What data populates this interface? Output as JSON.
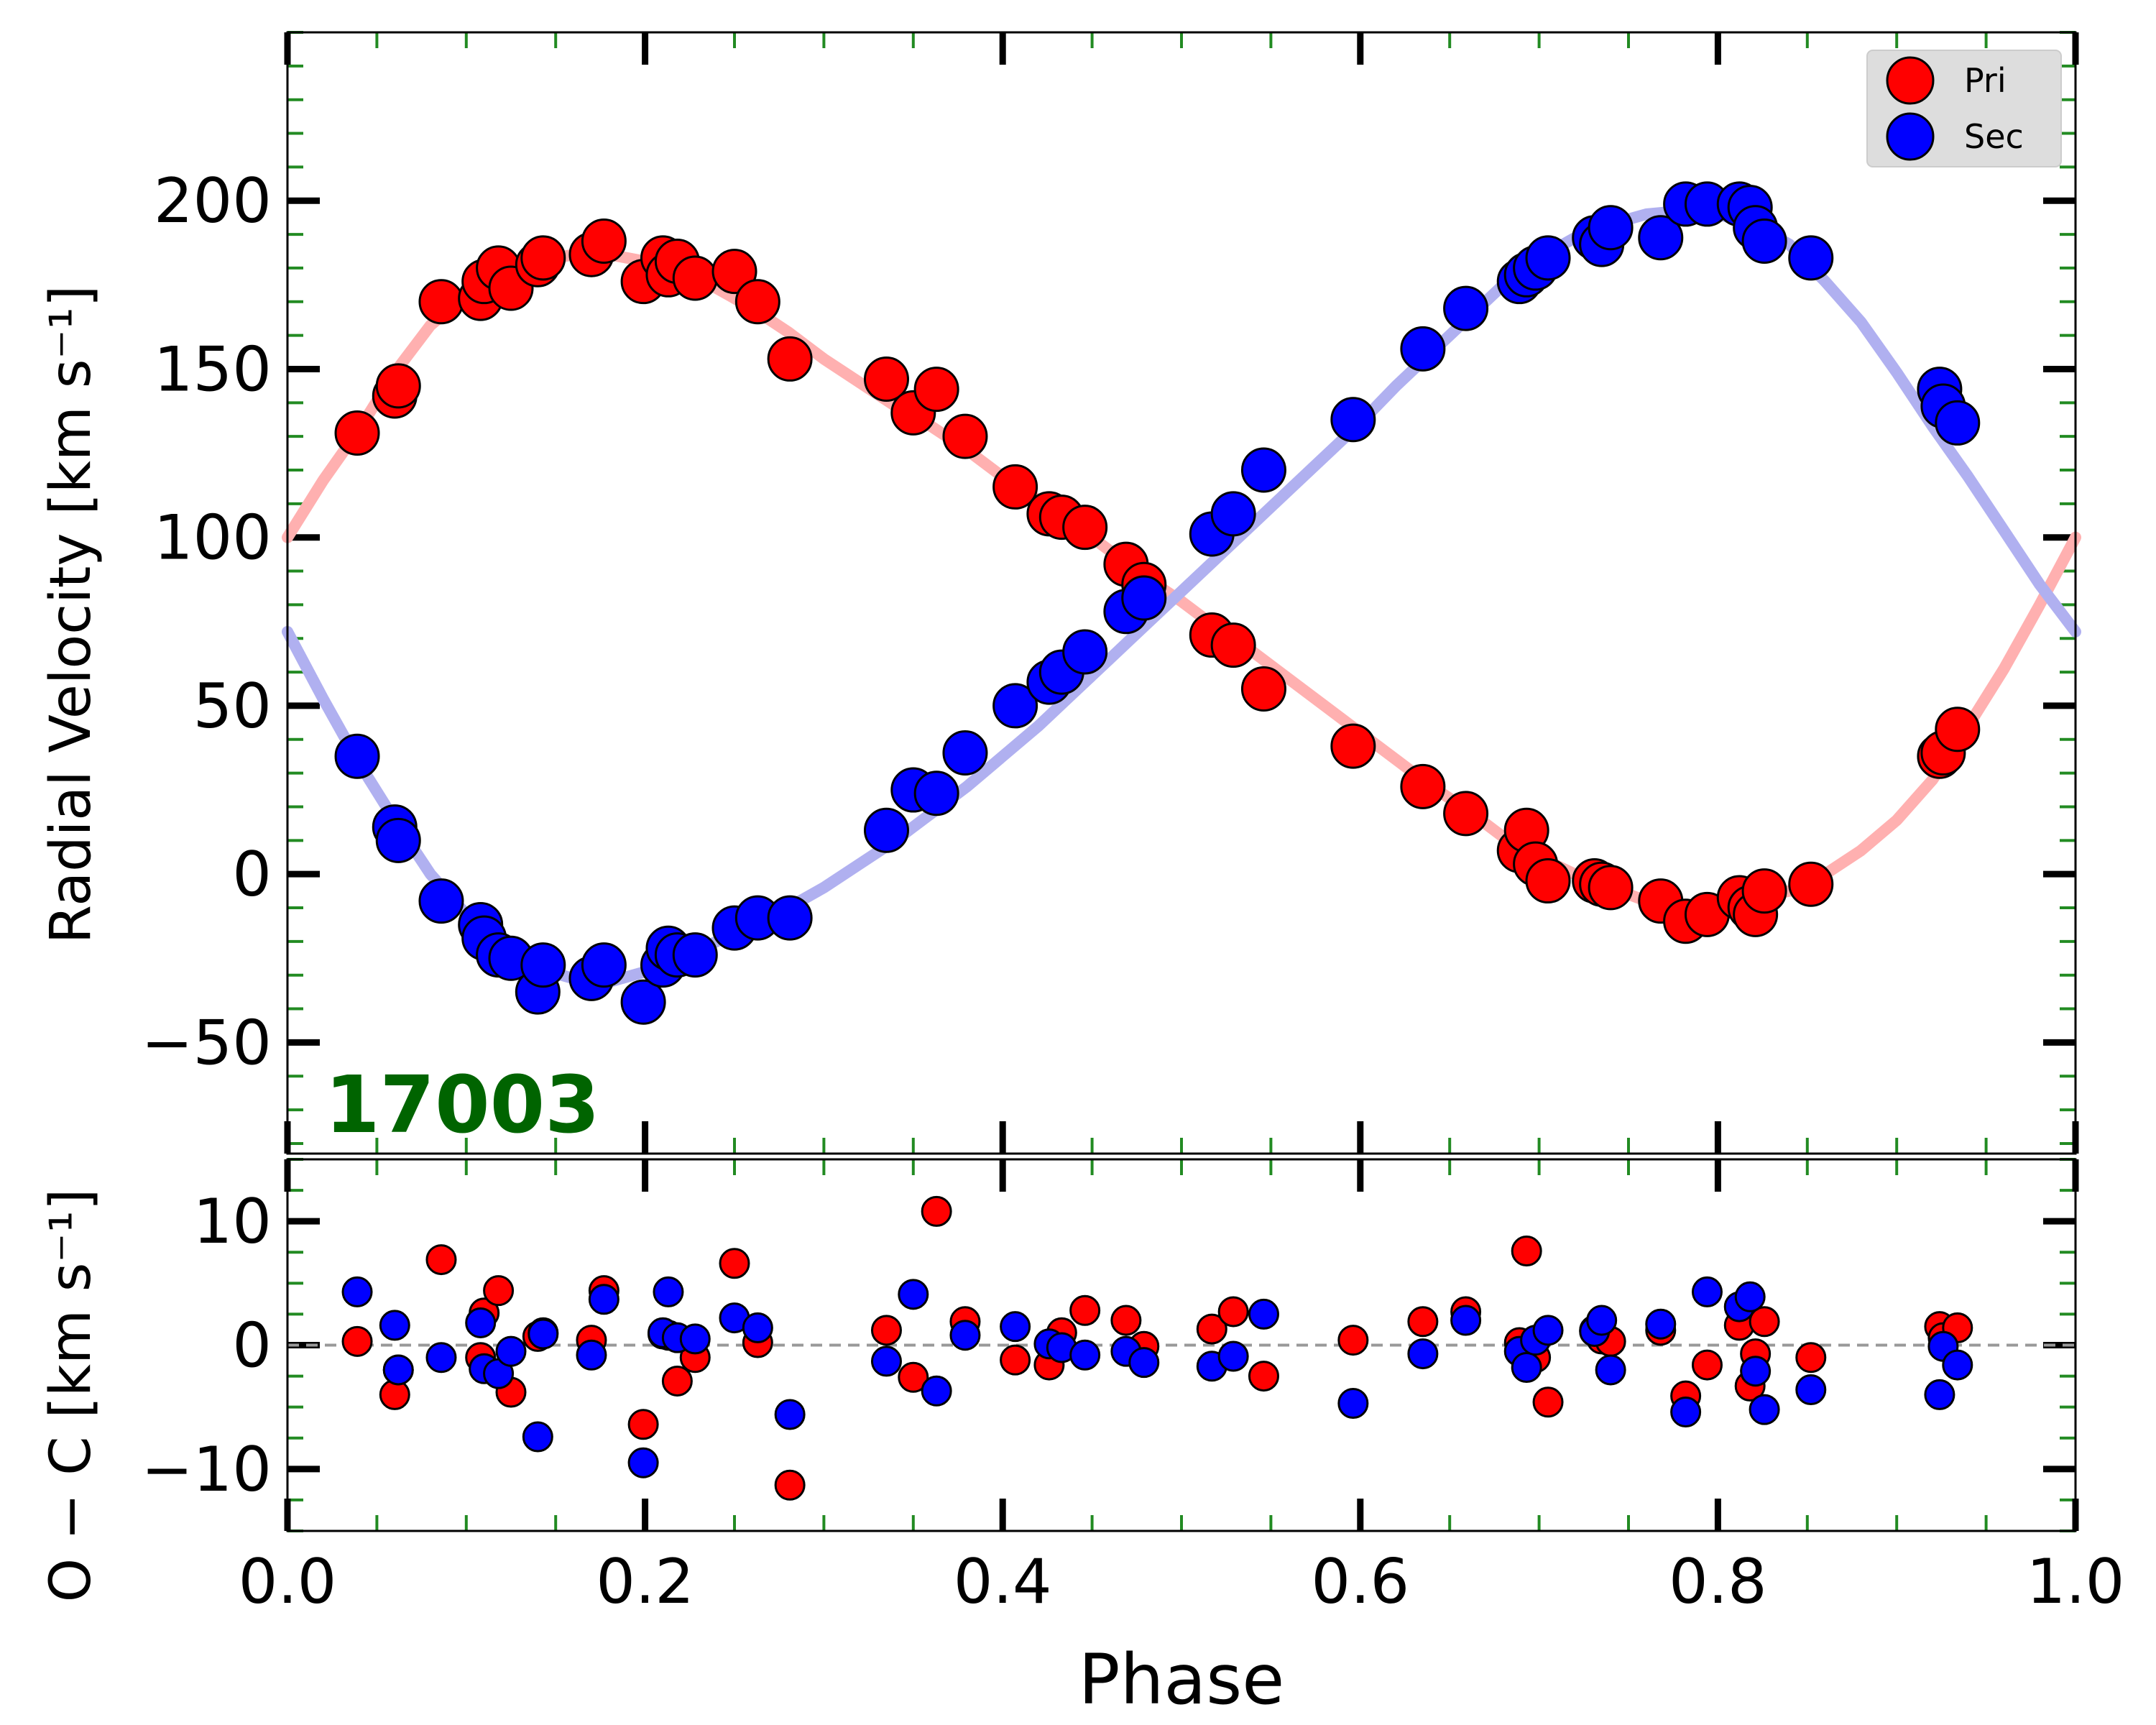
{
  "chart_data": [
    {
      "type": "scatter",
      "panel": "radial-velocity",
      "xlabel": "Phase",
      "ylabel": "Radial Velocity [km s⁻¹]",
      "xlim": [
        0.0,
        1.0
      ],
      "ylim": [
        -83,
        250
      ],
      "x_ticks": [
        0.0,
        0.2,
        0.4,
        0.6,
        0.8,
        1.0
      ],
      "x_tick_labels": [
        "0.0",
        "0.2",
        "0.4",
        "0.6",
        "0.8",
        "1.0"
      ],
      "y_ticks": [
        -50,
        0,
        50,
        100,
        150,
        200
      ],
      "y_tick_labels": [
        "−50",
        "0",
        "50",
        "100",
        "150",
        "200"
      ],
      "annotation": "17003",
      "annotation_color": "#006400",
      "legend_placement": "top-right",
      "series": [
        {
          "name": "Pri",
          "color": "#ff0000",
          "edge_color": "#000000",
          "model_color": "#ffb0b0",
          "x": [
            0.039,
            0.06,
            0.062,
            0.086,
            0.108,
            0.11,
            0.118,
            0.125,
            0.14,
            0.143,
            0.17,
            0.177,
            0.199,
            0.21,
            0.213,
            0.218,
            0.228,
            0.25,
            0.263,
            0.281,
            0.335,
            0.35,
            0.363,
            0.379,
            0.407,
            0.426,
            0.433,
            0.446,
            0.469,
            0.479,
            0.517,
            0.529,
            0.546,
            0.596,
            0.635,
            0.659,
            0.689,
            0.693,
            0.698,
            0.705,
            0.731,
            0.735,
            0.74,
            0.768,
            0.782,
            0.794,
            0.812,
            0.818,
            0.821,
            0.826,
            0.852,
            0.924,
            0.926,
            0.934
          ],
          "y": [
            131,
            142,
            145,
            170,
            171,
            176,
            180,
            174,
            181,
            183,
            184,
            188,
            176,
            183,
            178,
            182,
            177,
            179,
            170,
            153,
            147,
            137,
            144,
            130,
            115,
            107,
            106,
            103,
            92,
            86,
            71,
            68,
            55,
            38,
            26,
            18,
            7,
            13,
            3,
            -2,
            -2,
            -3,
            -4,
            -8,
            -14,
            -12,
            -7,
            -10,
            -12,
            -5,
            -3,
            35,
            36,
            43
          ]
        },
        {
          "name": "Sec",
          "color": "#0000ff",
          "edge_color": "#000000",
          "model_color": "#b0b0f0",
          "x": [
            0.039,
            0.06,
            0.062,
            0.086,
            0.108,
            0.11,
            0.118,
            0.125,
            0.14,
            0.143,
            0.17,
            0.177,
            0.199,
            0.21,
            0.213,
            0.218,
            0.228,
            0.25,
            0.263,
            0.281,
            0.335,
            0.35,
            0.363,
            0.379,
            0.407,
            0.426,
            0.433,
            0.446,
            0.469,
            0.479,
            0.517,
            0.529,
            0.546,
            0.596,
            0.635,
            0.659,
            0.689,
            0.693,
            0.698,
            0.705,
            0.731,
            0.735,
            0.74,
            0.768,
            0.782,
            0.794,
            0.812,
            0.818,
            0.821,
            0.826,
            0.852,
            0.924,
            0.926,
            0.934
          ],
          "y": [
            35,
            14,
            10,
            -8,
            -15,
            -19,
            -24,
            -25,
            -35,
            -27,
            -31,
            -27,
            -38,
            -27,
            -22,
            -24,
            -24,
            -16,
            -13,
            -13,
            13,
            25,
            24,
            36,
            50,
            57,
            60,
            66,
            78,
            82,
            101,
            107,
            120,
            135,
            156,
            168,
            176,
            178,
            180,
            183,
            189,
            187,
            192,
            189,
            199,
            199,
            199,
            198,
            192,
            188,
            183,
            144,
            139,
            134
          ]
        }
      ],
      "model_curves": [
        {
          "name": "Pri",
          "x": [
            0.0,
            0.02,
            0.04,
            0.06,
            0.08,
            0.1,
            0.12,
            0.14,
            0.16,
            0.18,
            0.2,
            0.22,
            0.24,
            0.26,
            0.28,
            0.3,
            0.32,
            0.34,
            0.36,
            0.38,
            0.4,
            0.42,
            0.44,
            0.46,
            0.48,
            0.5,
            0.52,
            0.54,
            0.56,
            0.58,
            0.6,
            0.62,
            0.64,
            0.66,
            0.68,
            0.7,
            0.72,
            0.74,
            0.76,
            0.78,
            0.8,
            0.82,
            0.84,
            0.86,
            0.88,
            0.9,
            0.92,
            0.94,
            0.96,
            0.98,
            1.0
          ],
          "y": [
            100,
            117,
            132,
            149,
            163,
            172,
            178,
            182,
            184,
            184,
            182,
            179,
            174,
            168,
            161,
            153,
            146,
            139,
            133,
            126,
            118,
            111,
            104,
            96,
            88,
            81,
            73,
            66,
            58,
            50,
            42,
            34,
            26,
            19,
            11,
            5,
            0,
            -4,
            -8,
            -10,
            -9,
            -7,
            -5,
            0,
            7,
            16,
            28,
            44,
            61,
            80,
            100
          ]
        },
        {
          "name": "Sec",
          "x": [
            0.0,
            0.02,
            0.04,
            0.06,
            0.08,
            0.1,
            0.12,
            0.14,
            0.16,
            0.18,
            0.2,
            0.22,
            0.24,
            0.26,
            0.28,
            0.3,
            0.32,
            0.34,
            0.36,
            0.38,
            0.4,
            0.42,
            0.44,
            0.46,
            0.48,
            0.5,
            0.52,
            0.54,
            0.56,
            0.58,
            0.6,
            0.62,
            0.64,
            0.66,
            0.68,
            0.7,
            0.72,
            0.74,
            0.76,
            0.78,
            0.8,
            0.82,
            0.84,
            0.86,
            0.88,
            0.9,
            0.92,
            0.94,
            0.96,
            0.98,
            1.0
          ],
          "y": [
            72,
            52,
            33,
            16,
            0,
            -12,
            -21,
            -28,
            -31,
            -32,
            -29,
            -25,
            -20,
            -15,
            -10,
            -4,
            3,
            10,
            18,
            26,
            35,
            44,
            54,
            64,
            74,
            84,
            94,
            104,
            114,
            124,
            134,
            145,
            155,
            165,
            175,
            183,
            189,
            193,
            196,
            197,
            196,
            193,
            187,
            176,
            164,
            149,
            133,
            118,
            102,
            86,
            72
          ]
        }
      ]
    },
    {
      "type": "scatter",
      "panel": "residuals",
      "xlabel": "Phase",
      "ylabel": "O − C [km s⁻¹]",
      "xlim": [
        0.0,
        1.0
      ],
      "ylim": [
        -15,
        15
      ],
      "x_ticks": [
        0.0,
        0.2,
        0.4,
        0.6,
        0.8,
        1.0
      ],
      "x_tick_labels": [
        "0.0",
        "0.2",
        "0.4",
        "0.6",
        "0.8",
        "1.0"
      ],
      "y_ticks": [
        -10,
        0,
        10
      ],
      "y_tick_labels": [
        "−10",
        "0",
        "10"
      ],
      "reference_line": 0,
      "series": [
        {
          "name": "Pri",
          "color": "#ff0000",
          "x": [
            0.039,
            0.06,
            0.062,
            0.086,
            0.108,
            0.11,
            0.118,
            0.125,
            0.14,
            0.143,
            0.17,
            0.177,
            0.199,
            0.21,
            0.213,
            0.218,
            0.228,
            0.25,
            0.263,
            0.281,
            0.335,
            0.35,
            0.363,
            0.379,
            0.407,
            0.426,
            0.433,
            0.446,
            0.469,
            0.479,
            0.517,
            0.529,
            0.546,
            0.596,
            0.635,
            0.659,
            0.689,
            0.693,
            0.698,
            0.705,
            0.731,
            0.735,
            0.74,
            0.768,
            0.782,
            0.794,
            0.812,
            0.818,
            0.821,
            0.826,
            0.852,
            0.924,
            0.926,
            0.934
          ],
          "y": [
            0.3,
            -4.0,
            -2.0,
            6.9,
            -1.0,
            2.6,
            4.4,
            -3.8,
            0.7,
            1.0,
            0.4,
            4.4,
            -6.4,
            0.9,
            0.8,
            -2.9,
            -1.0,
            6.6,
            0.2,
            -11.3,
            1.2,
            -2.6,
            10.8,
            1.9,
            -1.2,
            -1.6,
            1.0,
            2.8,
            2.0,
            -0.1,
            1.3,
            2.7,
            -2.5,
            0.4,
            1.9,
            2.7,
            0.2,
            7.6,
            -1.0,
            -4.6,
            1.2,
            0.5,
            0.3,
            1.2,
            -4.1,
            -1.6,
            1.6,
            -3.3,
            -0.7,
            1.9,
            -1.0,
            1.5,
            0.6,
            1.4
          ]
        },
        {
          "name": "Sec",
          "color": "#0000ff",
          "x": [
            0.039,
            0.06,
            0.062,
            0.086,
            0.108,
            0.11,
            0.118,
            0.125,
            0.14,
            0.143,
            0.17,
            0.177,
            0.199,
            0.21,
            0.213,
            0.218,
            0.228,
            0.25,
            0.263,
            0.281,
            0.335,
            0.35,
            0.363,
            0.379,
            0.407,
            0.426,
            0.433,
            0.446,
            0.469,
            0.479,
            0.517,
            0.529,
            0.546,
            0.596,
            0.635,
            0.659,
            0.689,
            0.693,
            0.698,
            0.705,
            0.731,
            0.735,
            0.74,
            0.768,
            0.782,
            0.794,
            0.812,
            0.818,
            0.821,
            0.826,
            0.852,
            0.924,
            0.926,
            0.934
          ],
          "y": [
            4.3,
            1.6,
            -2.0,
            -1.0,
            1.8,
            -1.9,
            -2.3,
            -0.5,
            -7.4,
            0.9,
            -0.8,
            3.7,
            -9.5,
            1.0,
            4.3,
            0.6,
            0.5,
            2.2,
            1.4,
            -5.6,
            -1.3,
            4.1,
            -3.7,
            0.8,
            1.5,
            0.1,
            -0.2,
            -0.8,
            -0.5,
            -1.4,
            -1.7,
            -0.9,
            2.5,
            -4.7,
            -0.7,
            2.0,
            -0.5,
            -1.8,
            0.4,
            1.2,
            1.1,
            2.0,
            -2.0,
            1.7,
            -5.4,
            4.3,
            3.1,
            3.9,
            -2.1,
            -5.2,
            -3.6,
            -4.0,
            -0.1,
            -1.6
          ]
        }
      ]
    }
  ]
}
